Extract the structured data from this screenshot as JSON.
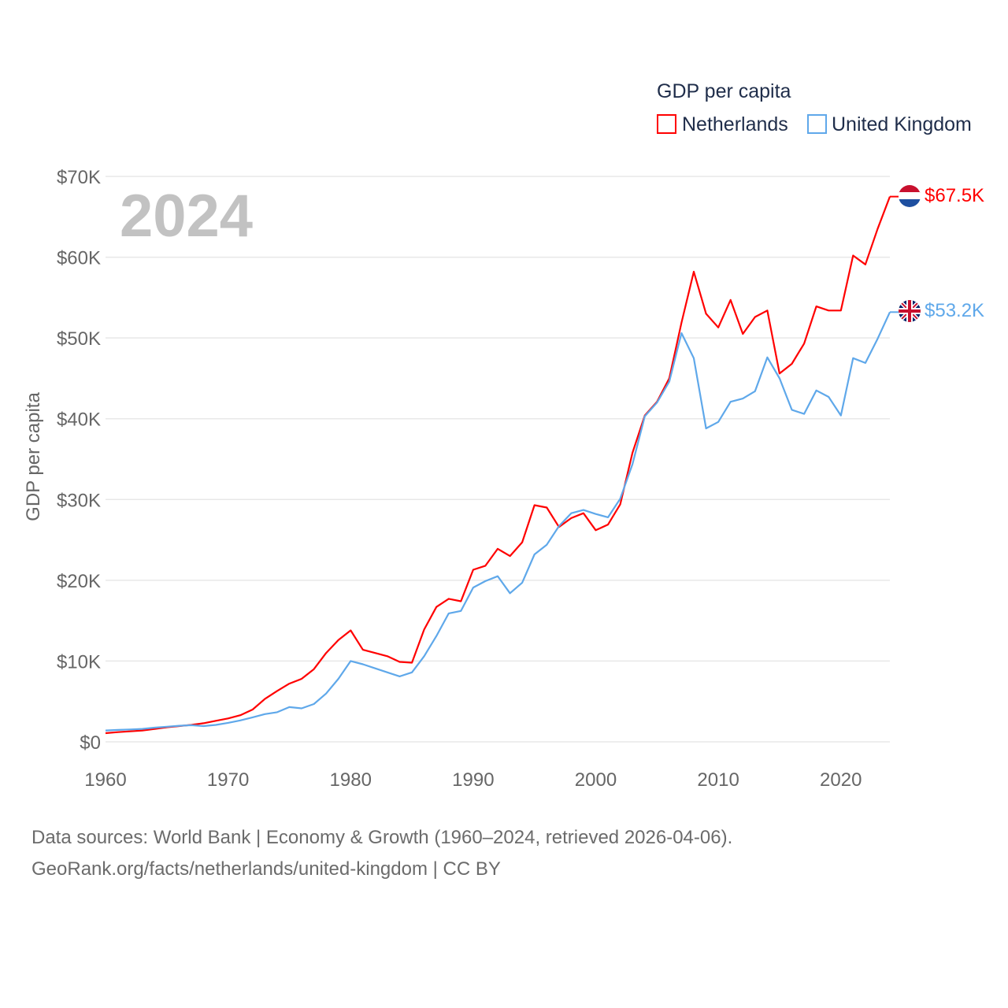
{
  "chart_data": {
    "type": "line",
    "title": "GDP per capita",
    "xlabel": "",
    "ylabel": "GDP per capita",
    "year_label": "2024",
    "xlim": [
      1960,
      2024
    ],
    "ylim": [
      0,
      70000
    ],
    "x_ticks": [
      1960,
      1970,
      1980,
      1990,
      2000,
      2010,
      2020
    ],
    "x_tick_labels": [
      "1960",
      "1970",
      "1980",
      "1990",
      "2000",
      "2010",
      "2020"
    ],
    "y_ticks": [
      0,
      10000,
      20000,
      30000,
      40000,
      50000,
      60000,
      70000
    ],
    "y_tick_labels": [
      "$0",
      "$10K",
      "$20K",
      "$30K",
      "$40K",
      "$50K",
      "$60K",
      "$70K"
    ],
    "grid": true,
    "legend_position": "top-right",
    "x": [
      1960,
      1961,
      1962,
      1963,
      1964,
      1965,
      1966,
      1967,
      1968,
      1969,
      1970,
      1971,
      1972,
      1973,
      1974,
      1975,
      1976,
      1977,
      1978,
      1979,
      1980,
      1981,
      1982,
      1983,
      1984,
      1985,
      1986,
      1987,
      1988,
      1989,
      1990,
      1991,
      1992,
      1993,
      1994,
      1995,
      1996,
      1997,
      1998,
      1999,
      2000,
      2001,
      2002,
      2003,
      2004,
      2005,
      2006,
      2007,
      2008,
      2009,
      2010,
      2011,
      2012,
      2013,
      2014,
      2015,
      2016,
      2017,
      2018,
      2019,
      2020,
      2021,
      2022,
      2023,
      2024
    ],
    "series": [
      {
        "name": "Netherlands",
        "color": "#ff0000",
        "end_label": "$67.5K",
        "values": [
          1070,
          1200,
          1300,
          1400,
          1600,
          1800,
          1950,
          2100,
          2300,
          2600,
          2900,
          3300,
          4000,
          5300,
          6300,
          7200,
          7800,
          9000,
          11000,
          12600,
          13800,
          11400,
          11000,
          10600,
          9900,
          9800,
          13900,
          16700,
          17700,
          17400,
          21300,
          21800,
          23900,
          23000,
          24700,
          29300,
          29000,
          26600,
          27700,
          28300,
          26200,
          26900,
          29400,
          35800,
          40400,
          42100,
          45000,
          51900,
          58200,
          53000,
          51300,
          54700,
          50500,
          52600,
          53400,
          45600,
          46800,
          49300,
          53900,
          53400,
          53400,
          60200,
          59100,
          63500,
          67500
        ]
      },
      {
        "name": "United Kingdom",
        "color": "#5fa8ea",
        "end_label": "$53.2K",
        "values": [
          1400,
          1470,
          1530,
          1600,
          1750,
          1870,
          1990,
          2060,
          1950,
          2100,
          2350,
          2650,
          3030,
          3430,
          3670,
          4300,
          4140,
          4680,
          5980,
          7800,
          10000,
          9600,
          9100,
          8600,
          8100,
          8600,
          10600,
          13100,
          15900,
          16200,
          19100,
          19900,
          20500,
          18400,
          19700,
          23200,
          24400,
          26700,
          28300,
          28700,
          28200,
          27800,
          30100,
          34400,
          40300,
          42000,
          44600,
          50600,
          47500,
          38800,
          39600,
          42100,
          42500,
          43400,
          47600,
          45000,
          41100,
          40600,
          43500,
          42700,
          40400,
          47500,
          46900,
          49900,
          53200
        ]
      }
    ]
  },
  "footer": {
    "line1": "Data sources: World Bank | Economy & Growth (1960–2024, retrieved 2026-04-06).",
    "line2": "GeoRank.org/facts/netherlands/united-kingdom | CC BY"
  }
}
